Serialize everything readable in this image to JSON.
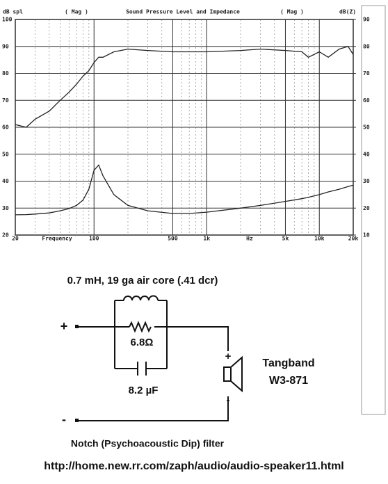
{
  "chart_data": {
    "type": "line",
    "title": "Sound Pressure Level and Impedance",
    "y_label": "dB spl",
    "y2_label": "dB(Z)",
    "mode_left": "( Mag )",
    "mode_right": "( Mag )",
    "x_label": "Frequency",
    "x_unit": "Hz",
    "x": [
      20,
      25,
      30,
      40,
      50,
      60,
      70,
      80,
      90,
      100,
      110,
      120,
      150,
      200,
      300,
      500,
      700,
      1000,
      2000,
      3000,
      5000,
      7000,
      8000,
      10000,
      12000,
      15000,
      18000,
      20000
    ],
    "series": [
      {
        "name": "SPL",
        "color": "#222222",
        "values": [
          61,
          60,
          63,
          66,
          70,
          73,
          76,
          79,
          81,
          84,
          86,
          86,
          88,
          89,
          88.5,
          88,
          88,
          88,
          88.5,
          89,
          88.5,
          88,
          86,
          88,
          86,
          89,
          90,
          87
        ]
      },
      {
        "name": "Impedance",
        "color": "#222222",
        "axis": "y2",
        "values": [
          17.5,
          17.6,
          17.8,
          18.2,
          19,
          19.8,
          21,
          23,
          27,
          34,
          36,
          32,
          25,
          21,
          19,
          18,
          18,
          18.5,
          20,
          21,
          22.5,
          23.5,
          24,
          25,
          26,
          27,
          28,
          28.5
        ]
      }
    ],
    "xlim": [
      20,
      20000
    ],
    "log_x": true,
    "xticks": [
      {
        "value": 20,
        "label": "20"
      },
      100,
      500,
      {
        "value": 1000,
        "label": "1k"
      },
      {
        "value": 5000,
        "label": "5k"
      },
      {
        "value": 10000,
        "label": "10k"
      },
      {
        "value": 20000,
        "label": "20k"
      }
    ],
    "ylim": [
      20,
      100
    ],
    "yticks": [
      20,
      30,
      40,
      50,
      60,
      70,
      80,
      90,
      100
    ],
    "y2lim": [
      10,
      90
    ],
    "y2ticks": [
      10,
      20,
      30,
      40,
      50,
      60,
      70,
      80,
      90
    ],
    "grid": true
  },
  "diagram": {
    "inductor_label": "0.7 mH, 19 ga air core (.41 dcr)",
    "plus_in": "+",
    "minus_in": "-",
    "resistor_label": "6.8Ω",
    "capacitor_label": "8.2 µF",
    "speaker_plus": "+",
    "speaker_minus": "-",
    "speaker_brand": "Tangband",
    "speaker_model": "W3-871",
    "caption": "Notch (Psychoacoustic Dip) filter",
    "url": "http://home.new.rr.com/zaph/audio/audio-speaker11.html"
  }
}
